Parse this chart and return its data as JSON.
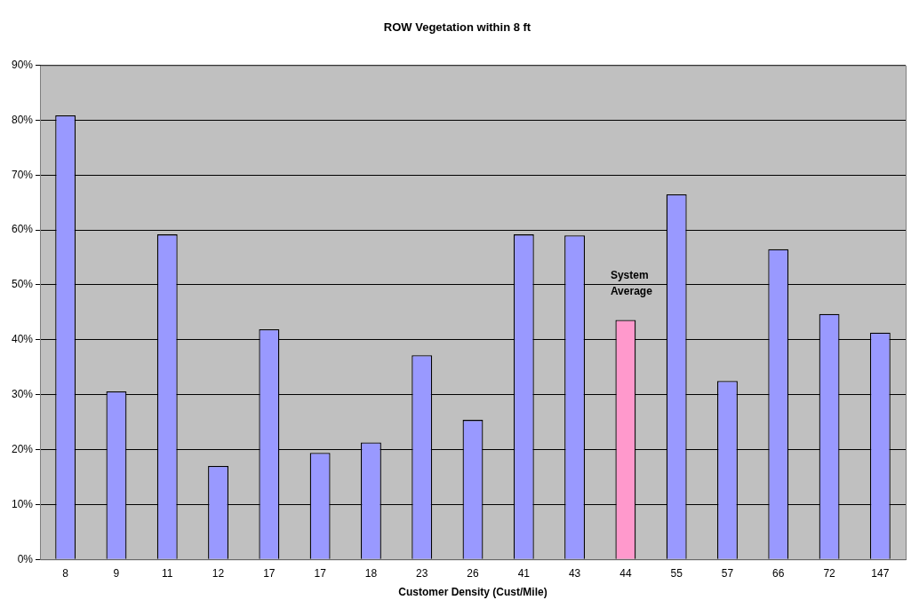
{
  "chart_data": {
    "type": "bar",
    "title": "ROW Vegetation within 8 ft",
    "xlabel": "Customer Density (Cust/Mile)",
    "categories": [
      "8",
      "9",
      "11",
      "12",
      "17",
      "17",
      "18",
      "23",
      "26",
      "41",
      "43",
      "44",
      "55",
      "57",
      "66",
      "72",
      "147"
    ],
    "values": [
      80.9,
      30.6,
      59.2,
      17.0,
      41.9,
      19.4,
      21.3,
      37.2,
      25.4,
      59.2,
      59.0,
      43.6,
      66.5,
      32.5,
      56.5,
      44.7,
      41.3
    ],
    "colors": [
      "#9999ff",
      "#9999ff",
      "#9999ff",
      "#9999ff",
      "#9999ff",
      "#9999ff",
      "#9999ff",
      "#9999ff",
      "#9999ff",
      "#9999ff",
      "#9999ff",
      "#ff99cc",
      "#9999ff",
      "#9999ff",
      "#9999ff",
      "#9999ff",
      "#9999ff"
    ],
    "ylim": [
      0,
      90
    ],
    "yticks": [
      {
        "value": 0,
        "label": "0%"
      },
      {
        "value": 10,
        "label": "10%"
      },
      {
        "value": 20,
        "label": "20%"
      },
      {
        "value": 30,
        "label": "30%"
      },
      {
        "value": 40,
        "label": "40%"
      },
      {
        "value": 50,
        "label": "50%"
      },
      {
        "value": 60,
        "label": "60%"
      },
      {
        "value": 70,
        "label": "70%"
      },
      {
        "value": 80,
        "label": "80%"
      },
      {
        "value": 90,
        "label": "90%"
      }
    ],
    "grid": "y",
    "legend": false,
    "annotations": [
      "System Average"
    ]
  }
}
